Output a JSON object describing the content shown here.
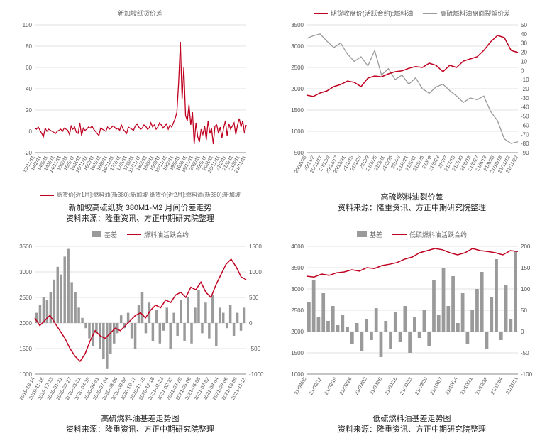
{
  "colors": {
    "red": "#c00020",
    "grey": "#9a9a9a",
    "grid": "#e0e0e0",
    "axis": "#888888",
    "text": "#333333",
    "bg": "#ffffff"
  },
  "source_line": "资料来源：隆重资讯、方正中期研究院整理",
  "panels": {
    "tl": {
      "legend_top_title": "新加坡纸货价差",
      "legend_bottom": "纸货价[近1月]:燃料油(新380):新加坡-纸货价[近2月]:燃料油(新380):新加坡",
      "title": "新加坡高硫纸货 380M1-M2 月间价差走势",
      "y": {
        "min": -20,
        "max": 100,
        "step": 20
      },
      "x_labels": [
        "13/11/11",
        "14/2/11",
        "14/5/11",
        "14/8/11",
        "14/11/11",
        "15/2/11",
        "15/5/11",
        "15/8/11",
        "15/11/11",
        "16/2/11",
        "16/5/11",
        "16/8/11",
        "16/11/11",
        "17/2/11",
        "17/5/11",
        "17/8/11",
        "17/11/11",
        "18/2/11",
        "18/5/11",
        "18/8/11",
        "18/11/11",
        "19/2/11",
        "19/5/11",
        "19/8/11",
        "19/11/11",
        "20/2/11",
        "20/5/11",
        "20/8/11",
        "20/11/11",
        "21/2/11",
        "21/5/11",
        "21/8/11",
        "21/11/11"
      ],
      "series": {
        "spread": {
          "color": "#c00020",
          "lw": 1.3,
          "values": [
            3,
            2,
            4,
            1,
            -2,
            -5,
            3,
            0,
            2,
            1,
            0,
            -1,
            -2,
            0,
            1,
            2,
            0,
            3,
            2,
            1,
            -3,
            5,
            2,
            4,
            -1,
            -2,
            8,
            -4,
            3,
            1,
            2,
            4,
            3,
            5,
            2,
            0,
            -2,
            -4,
            3,
            2,
            1,
            0,
            4,
            2,
            3,
            5,
            4,
            2,
            3,
            1,
            6,
            2,
            0,
            -2,
            4,
            3,
            2,
            1,
            5,
            7,
            4,
            2,
            3,
            6,
            5,
            2,
            3,
            8,
            4,
            6,
            2,
            4,
            8,
            6,
            3,
            5,
            7,
            2,
            6,
            4,
            8,
            12,
            18,
            45,
            84,
            30,
            60,
            15,
            10,
            25,
            6,
            18,
            -12,
            8,
            -5,
            -10,
            2,
            -3,
            5,
            -8,
            10,
            -2,
            3,
            -12,
            5,
            6,
            -2,
            4,
            -6,
            3,
            10,
            -4,
            7,
            2,
            5,
            8,
            -3,
            6,
            12,
            4,
            10,
            -2,
            6
          ]
        }
      }
    },
    "tr": {
      "legend": [
        {
          "type": "line",
          "color": "#c00020",
          "label": "期货收盘价(活跃合约):燃料油"
        },
        {
          "type": "line",
          "color": "#9a9a9a",
          "label": "高硫燃料油盘面裂解价差"
        }
      ],
      "title": "高硫燃料油裂价差",
      "yL": {
        "min": 500,
        "max": 3500,
        "step": 500
      },
      "yR": {
        "min": -90,
        "max": 50,
        "step": 10
      },
      "x_labels": [
        "20/10/28",
        "20/11/2",
        "20/11/17",
        "20/12/3",
        "20/12/17",
        "20/12/31",
        "21/1/15",
        "21/1/26",
        "21/2/9",
        "21/2/25",
        "21/3/11",
        "21/3/25",
        "21/4/6",
        "21/4/21",
        "21/5/11",
        "21/5/25",
        "21/6/8",
        "21/6/23",
        "21/7/7",
        "21/7/15",
        "21/7/30",
        "21/8/13",
        "21/8/27",
        "21/9/13",
        "21/9/28",
        "21/10/18",
        "21/11/12",
        "21/11/22"
      ],
      "series": {
        "price": {
          "color": "#c00020",
          "lw": 1.5,
          "axis": "L",
          "values": [
            1850,
            1820,
            1900,
            1950,
            2050,
            2100,
            2180,
            2150,
            2050,
            2250,
            2300,
            2280,
            2350,
            2400,
            2420,
            2480,
            2520,
            2500,
            2600,
            2550,
            2400,
            2550,
            2500,
            2650,
            2700,
            2750,
            2900,
            3100,
            3250,
            3200,
            2900,
            2850
          ]
        },
        "crack": {
          "color": "#9a9a9a",
          "lw": 1.3,
          "axis": "R",
          "values": [
            35,
            38,
            40,
            32,
            25,
            30,
            18,
            10,
            15,
            5,
            22,
            -5,
            2,
            -10,
            -5,
            -15,
            -8,
            -20,
            -25,
            -18,
            -15,
            -22,
            -28,
            -35,
            -30,
            -32,
            -28,
            -45,
            -55,
            -75,
            -80,
            -78
          ]
        }
      }
    },
    "bl": {
      "legend": [
        {
          "type": "bar",
          "color": "#9a9a9a",
          "label": "基差"
        },
        {
          "type": "line",
          "color": "#c00020",
          "label": "燃料油活跃合约"
        }
      ],
      "title": "高硫燃料油基差走势图",
      "yL": {
        "min": 1000,
        "max": 3500,
        "step": 500
      },
      "yR": {
        "min": -1000,
        "max": 1500,
        "step": 500
      },
      "x_labels": [
        "2019-10-14",
        "2019-11-16",
        "2019-12-23",
        "2020-01-21",
        "2020-02-27",
        "2020-03-31",
        "2020-04-29",
        "2020-06-01",
        "2020-07-04",
        "2020-08-06",
        "2020-09-08",
        "2020-10-17",
        "2020-11-19",
        "2020-12-18",
        "2021-01-22",
        "2021-02-25",
        "2021-03-29",
        "2021-05-06",
        "2021-06-08",
        "2021-07-02",
        "2021-08-04",
        "2021-09-06",
        "2021-10-09",
        "2021-11-15"
      ],
      "series": {
        "basis": {
          "color": "#9a9a9a",
          "axis": "R",
          "values": [
            200,
            350,
            500,
            450,
            600,
            850,
            1100,
            950,
            1300,
            1450,
            800,
            600,
            300,
            100,
            -100,
            -300,
            -450,
            -200,
            -500,
            -700,
            -900,
            -600,
            -400,
            -200,
            150,
            -100,
            200,
            -300,
            -500,
            350,
            600,
            -200,
            400,
            -350,
            250,
            -400,
            -150,
            300,
            -500,
            200,
            -250,
            450,
            -350,
            500,
            -400,
            300,
            650,
            -200,
            400,
            -300,
            550,
            -450,
            300,
            200,
            -100,
            350,
            -250,
            200,
            -150,
            300
          ]
        },
        "price": {
          "color": "#c00020",
          "lw": 1.5,
          "axis": "L",
          "values": [
            2100,
            1950,
            2050,
            2150,
            2000,
            1850,
            1700,
            1500,
            1350,
            1250,
            1400,
            1650,
            1850,
            1750,
            1700,
            1800,
            1900,
            1850,
            1950,
            2050,
            2150,
            2200,
            2100,
            2250,
            2350,
            2300,
            2450,
            2400,
            2550,
            2600,
            2500,
            2700,
            2650,
            2800,
            2600,
            2500,
            2750,
            2950,
            3150,
            3250,
            3100,
            2900,
            2850
          ]
        }
      }
    },
    "br": {
      "legend": [
        {
          "type": "bar",
          "color": "#9a9a9a",
          "label": "基差"
        },
        {
          "type": "line",
          "color": "#c00020",
          "label": "低硫燃料油活跃合约"
        }
      ],
      "title": "低硫燃料油基差走势图",
      "yL": {
        "min": 1000,
        "max": 4000,
        "step": 500
      },
      "yR": {
        "min": -100,
        "max": 200,
        "step": 50
      },
      "x_labels": [
        "21/08/05",
        "21/08/12",
        "21/08/19",
        "21/08/26",
        "21/09/02",
        "21/09/09",
        "21/09/16",
        "21/09/23",
        "21/09/30",
        "21/10/07",
        "21/10/14",
        "21/10/21",
        "21/10/28",
        "21/11/04",
        "21/11/11"
      ],
      "series": {
        "basis": {
          "color": "#9a9a9a",
          "axis": "R",
          "values": [
            70,
            120,
            35,
            90,
            25,
            60,
            15,
            40,
            10,
            -30,
            20,
            -45,
            30,
            -20,
            55,
            -60,
            25,
            -40,
            45,
            -25,
            60,
            -50,
            35,
            -15,
            50,
            -35,
            120,
            40,
            150,
            60,
            130,
            20,
            90,
            -30,
            50,
            100,
            140,
            -40,
            80,
            170,
            -20,
            110,
            30,
            190
          ]
        },
        "price": {
          "color": "#c00020",
          "lw": 1.5,
          "axis": "L",
          "values": [
            3300,
            3280,
            3350,
            3320,
            3380,
            3400,
            3450,
            3420,
            3500,
            3480,
            3550,
            3580,
            3620,
            3700,
            3750,
            3850,
            3900,
            3950,
            3920,
            3850,
            3800,
            3850,
            3950,
            3900,
            3880,
            3850,
            3800,
            3900,
            3880
          ]
        }
      }
    }
  }
}
